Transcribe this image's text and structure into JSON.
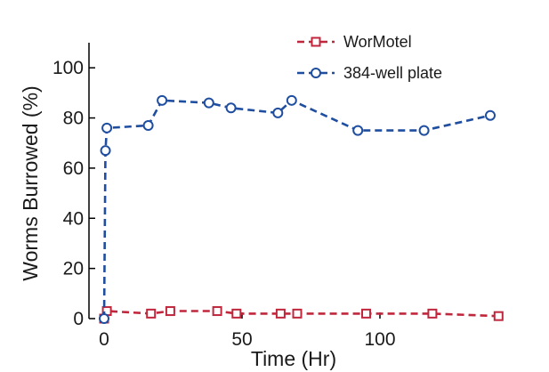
{
  "chart_data": {
    "type": "line",
    "title": "",
    "xlabel": "Time (Hr)",
    "ylabel": "Worms Burrowed (%)",
    "xlim": [
      -5,
      145
    ],
    "ylim": [
      0,
      110
    ],
    "xticks": [
      0,
      50,
      100
    ],
    "yticks": [
      0,
      20,
      40,
      60,
      80,
      100
    ],
    "grid": false,
    "legend_position": "top-right",
    "series": [
      {
        "name": "WorMotel",
        "color": "#c0273d",
        "line_style": "dashed",
        "marker": "square",
        "x": [
          0,
          1,
          17,
          24,
          41,
          48,
          64,
          70,
          95,
          119,
          143
        ],
        "y": [
          0,
          3,
          2,
          3,
          3,
          2,
          2,
          2,
          2,
          2,
          1
        ]
      },
      {
        "name": "384-well plate",
        "color": "#1f4ea0",
        "line_style": "dashed",
        "marker": "circle",
        "x": [
          0,
          0.5,
          1,
          16,
          21,
          38,
          46,
          63,
          68,
          92,
          116,
          140
        ],
        "y": [
          0,
          67,
          76,
          77,
          87,
          86,
          84,
          82,
          87,
          75,
          75,
          81
        ]
      }
    ]
  }
}
